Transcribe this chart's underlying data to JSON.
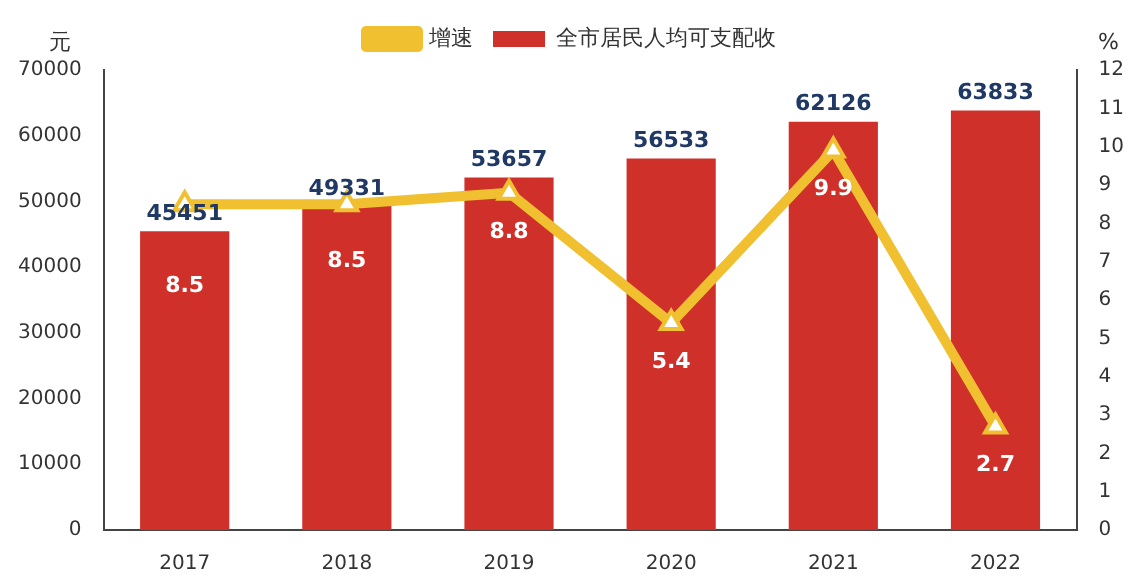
{
  "chart_data": {
    "type": "bar",
    "categories": [
      "2017",
      "2018",
      "2019",
      "2020",
      "2021",
      "2022"
    ],
    "series": [
      {
        "name": "全市居民人均可支配收",
        "color": "#d0302a",
        "values": [
          45451,
          49331,
          53657,
          56533,
          62126,
          63833
        ]
      },
      {
        "name": "增速",
        "type": "line",
        "axis": "y2",
        "color": "#f0c030",
        "values": [
          8.5,
          8.5,
          8.8,
          5.4,
          9.9,
          2.7
        ]
      }
    ],
    "ylabel": "元",
    "y2label": "%",
    "ylim": [
      0,
      70000
    ],
    "yticks": [
      0,
      10000,
      20000,
      30000,
      40000,
      50000,
      60000,
      70000
    ],
    "y2lim": [
      0,
      12
    ],
    "y2ticks": [
      0,
      1,
      2,
      3,
      4,
      5,
      6,
      7,
      8,
      9,
      10,
      11,
      12
    ],
    "legend": "top",
    "marker": "triangle",
    "data_labels": true,
    "grid": false
  }
}
